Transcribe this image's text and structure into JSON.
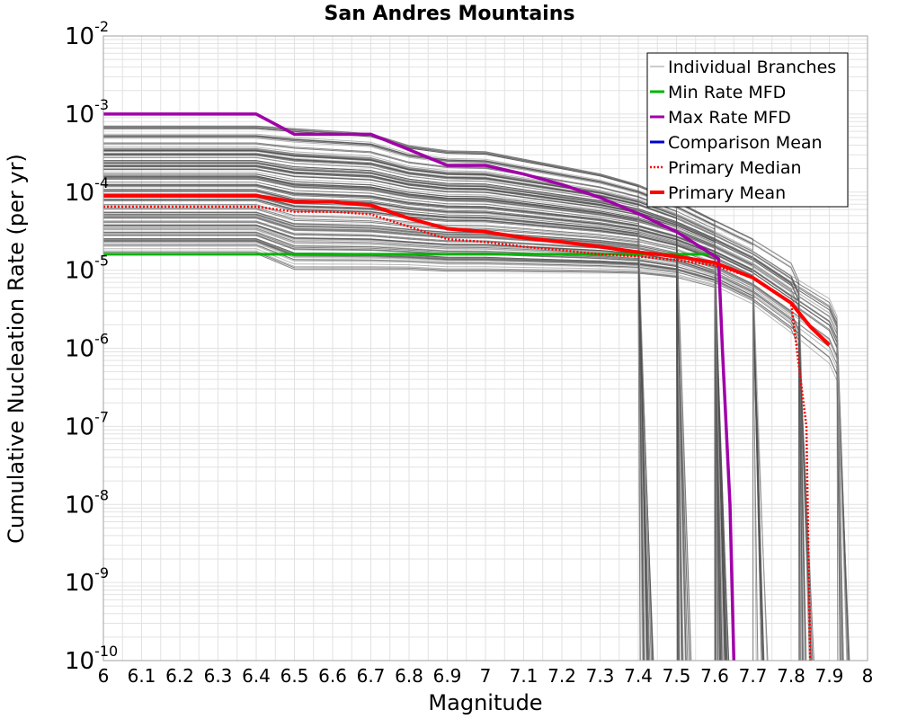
{
  "chart_data": {
    "type": "line",
    "title": "San Andres Mountains",
    "xlabel": "Magnitude",
    "ylabel": "Cumulative Nucleation Rate (per yr)",
    "xlim": [
      6,
      8
    ],
    "ylim": [
      1e-10,
      0.01
    ],
    "yscale": "log",
    "grid": true,
    "legend_position": "top-right",
    "x_ticks": [
      "6",
      "6.1",
      "6.2",
      "6.3",
      "6.4",
      "6.5",
      "6.6",
      "6.7",
      "6.8",
      "6.9",
      "7",
      "7.1",
      "7.2",
      "7.3",
      "7.4",
      "7.5",
      "7.6",
      "7.7",
      "7.8",
      "7.9",
      "8"
    ],
    "y_ticks": [
      {
        "base": "10",
        "exp": "-10",
        "value": 1e-10
      },
      {
        "base": "10",
        "exp": "-9",
        "value": 1e-09
      },
      {
        "base": "10",
        "exp": "-8",
        "value": 1e-08
      },
      {
        "base": "10",
        "exp": "-7",
        "value": 1e-07
      },
      {
        "base": "10",
        "exp": "-6",
        "value": 1e-06
      },
      {
        "base": "10",
        "exp": "-5",
        "value": 1e-05
      },
      {
        "base": "10",
        "exp": "-4",
        "value": 0.0001
      },
      {
        "base": "10",
        "exp": "-3",
        "value": 0.001
      },
      {
        "base": "10",
        "exp": "-2",
        "value": 0.01
      }
    ],
    "colors": {
      "branches": "#505050",
      "branches_light": "#9a9a9a",
      "min": "#00b400",
      "max": "#a000a8",
      "comparison": "#0000cc",
      "median": "#ff0000",
      "mean": "#ff0000",
      "grid": "#e2e2e2",
      "frame": "#a0a0a0"
    },
    "series": [
      {
        "name": "Min Rate MFD",
        "style": "solid",
        "x": [
          6.0,
          6.1,
          6.2,
          6.3,
          6.4,
          6.5,
          6.6,
          6.7,
          6.8,
          6.9,
          7.0,
          7.1,
          7.2,
          7.3,
          7.4,
          7.5,
          7.6
        ],
        "y": [
          1.6e-05,
          1.6e-05,
          1.6e-05,
          1.6e-05,
          1.6e-05,
          1.6e-05,
          1.6e-05,
          1.6e-05,
          1.6e-05,
          1.6e-05,
          1.6e-05,
          1.6e-05,
          1.6e-05,
          1.6e-05,
          1.6e-05,
          1.6e-05,
          1.6e-05
        ]
      },
      {
        "name": "Max Rate MFD",
        "style": "solid",
        "x": [
          6.0,
          6.1,
          6.2,
          6.3,
          6.4,
          6.5,
          6.6,
          6.7,
          6.8,
          6.9,
          7.0,
          7.1,
          7.2,
          7.3,
          7.4,
          7.5,
          7.58,
          7.61,
          7.62,
          7.64,
          7.65
        ],
        "y": [
          0.001,
          0.001,
          0.001,
          0.001,
          0.001,
          0.00055,
          0.00055,
          0.00055,
          0.00035,
          0.00022,
          0.00022,
          0.00017,
          0.000125,
          8.5e-05,
          5.3e-05,
          3.1e-05,
          1.75e-05,
          1.4e-05,
          1e-06,
          1e-08,
          1e-10
        ]
      },
      {
        "name": "Comparison Mean",
        "style": "solid",
        "x": [],
        "y": []
      },
      {
        "name": "Primary Median",
        "style": "dotted",
        "x": [
          6.0,
          6.1,
          6.2,
          6.3,
          6.4,
          6.5,
          6.6,
          6.7,
          6.8,
          6.9,
          7.0,
          7.1,
          7.2,
          7.3,
          7.4,
          7.5,
          7.6,
          7.7,
          7.8,
          7.84,
          7.85
        ],
        "y": [
          6.5e-05,
          6.5e-05,
          6.5e-05,
          6.5e-05,
          6.5e-05,
          5.6e-05,
          5.6e-05,
          5.2e-05,
          3.6e-05,
          2.5e-05,
          2.3e-05,
          2e-05,
          1.8e-05,
          1.6e-05,
          1.5e-05,
          1.35e-05,
          1.15e-05,
          8e-06,
          3.8e-06,
          1e-07,
          1e-10
        ]
      },
      {
        "name": "Primary Mean",
        "style": "solid",
        "x": [
          6.0,
          6.1,
          6.2,
          6.3,
          6.4,
          6.5,
          6.6,
          6.7,
          6.8,
          6.9,
          7.0,
          7.1,
          7.2,
          7.3,
          7.4,
          7.5,
          7.6,
          7.7,
          7.8,
          7.85,
          7.9
        ],
        "y": [
          9e-05,
          9e-05,
          9e-05,
          9e-05,
          9e-05,
          7.5e-05,
          7.5e-05,
          6.8e-05,
          4.6e-05,
          3.4e-05,
          3.1e-05,
          2.6e-05,
          2.3e-05,
          2e-05,
          1.7e-05,
          1.5e-05,
          1.25e-05,
          8e-06,
          3.8e-06,
          1.9e-06,
          1.1e-06
        ]
      }
    ],
    "branch_envelope": {
      "note_source": "Individual Branches",
      "x": [
        6.0,
        6.4,
        6.5,
        6.7,
        6.8,
        6.9,
        7.0,
        7.3,
        7.4,
        7.5,
        7.6,
        7.7,
        7.8,
        7.9
      ],
      "upper": [
        0.00075,
        0.00075,
        0.0007,
        0.0006,
        0.00042,
        0.00036,
        0.00035,
        0.00018,
        0.00013,
        8e-05,
        4.5e-05,
        2.6e-05,
        1.3e-05,
        7e-06
      ],
      "lower": [
        1.6e-05,
        1.6e-05,
        1e-05,
        1e-05,
        1e-05,
        9.5e-06,
        9.5e-06,
        9.2e-06,
        9e-06,
        8e-06,
        6e-06,
        3.5e-06,
        1.5e-06,
        6e-07
      ],
      "cutoffs": [
        7.42,
        7.52,
        7.62,
        7.72,
        7.84,
        7.94
      ]
    }
  },
  "legend": {
    "items": [
      {
        "label": "Individual Branches",
        "color_key": "branches_light",
        "style": "thin"
      },
      {
        "label": "Min Rate MFD",
        "color_key": "min",
        "style": "solid"
      },
      {
        "label": "Max Rate MFD",
        "color_key": "max",
        "style": "solid"
      },
      {
        "label": "Comparison Mean",
        "color_key": "comparison",
        "style": "solid"
      },
      {
        "label": " Primary Median",
        "color_key": "median",
        "style": "dotted"
      },
      {
        "label": "Primary Mean",
        "color_key": "mean",
        "style": "thick"
      }
    ]
  }
}
